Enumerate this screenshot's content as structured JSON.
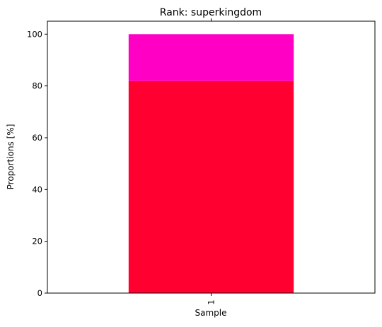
{
  "chart_data": {
    "type": "bar",
    "stacked": true,
    "title": "Rank: superkingdom",
    "xlabel": "Sample",
    "ylabel": "Proportions [%]",
    "categories": [
      "1"
    ],
    "ylim": [
      0,
      105
    ],
    "yticks": [
      "0",
      "20",
      "40",
      "60",
      "80",
      "100"
    ],
    "grid": false,
    "legend": "none",
    "series": [
      {
        "values": [
          81.9
        ],
        "color": "#ff0030"
      },
      {
        "values": [
          18.1
        ],
        "color": "#ff00c4"
      }
    ]
  }
}
